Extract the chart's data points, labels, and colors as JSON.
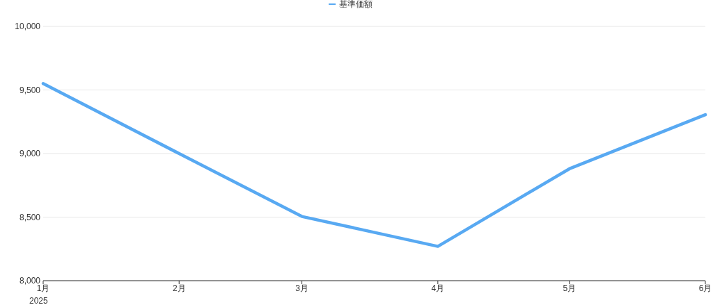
{
  "chart_data": {
    "type": "line",
    "x": [
      "2025-01",
      "2025-02",
      "2025-03",
      "2025-04",
      "2025-05",
      "2025-06"
    ],
    "series": [
      {
        "name": "基準価額",
        "color": "#58a9f2",
        "values": [
          9550,
          9000,
          8505,
          8270,
          8880,
          9305
        ]
      }
    ],
    "xlim": [
      "2025-01",
      "2025-06"
    ],
    "xticks": [
      {
        "value": "2025-01",
        "label": "1月\n2025"
      },
      {
        "value": "2025-02",
        "label": "2月"
      },
      {
        "value": "2025-03",
        "label": "3月"
      },
      {
        "value": "2025-04",
        "label": "4月"
      },
      {
        "value": "2025-05",
        "label": "5月"
      },
      {
        "value": "2025-06",
        "label": "6月"
      }
    ],
    "ylim": [
      8000,
      10000
    ],
    "yticks": [
      {
        "value": 8000,
        "label": "8,000"
      },
      {
        "value": 8500,
        "label": "8,500"
      },
      {
        "value": 9000,
        "label": "9,000"
      },
      {
        "value": 9500,
        "label": "9,500"
      },
      {
        "value": 10000,
        "label": "10,000"
      }
    ],
    "grid": "y",
    "legend": "top",
    "marker": "none",
    "line_style": "solid"
  }
}
